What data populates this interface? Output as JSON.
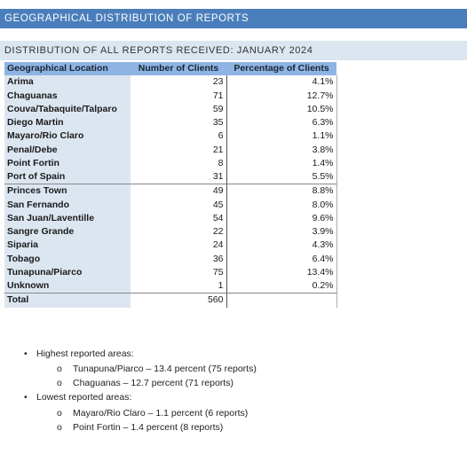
{
  "banner_title": "GEOGRAPHICAL DISTRIBUTION OF REPORTS",
  "subtitle": "DISTRIBUTION OF ALL REPORTS RECEIVED: JANUARY 2024",
  "table": {
    "headers": [
      "Geographical Location",
      "Number of Clients",
      "Percentage of Clients"
    ],
    "rows": [
      {
        "location": "Arima",
        "clients": "23",
        "percent": "4.1%"
      },
      {
        "location": "Chaguanas",
        "clients": "71",
        "percent": "12.7%"
      },
      {
        "location": "Couva/Tabaquite/Talparo",
        "clients": "59",
        "percent": "10.5%"
      },
      {
        "location": "Diego Martin",
        "clients": "35",
        "percent": "6.3%"
      },
      {
        "location": "Mayaro/Rio Claro",
        "clients": "6",
        "percent": "1.1%"
      },
      {
        "location": "Penal/Debe",
        "clients": "21",
        "percent": "3.8%"
      },
      {
        "location": "Point Fortin",
        "clients": "8",
        "percent": "1.4%"
      },
      {
        "location": "Port of Spain",
        "clients": "31",
        "percent": "5.5%"
      },
      {
        "location": "Princes Town",
        "clients": "49",
        "percent": "8.8%"
      },
      {
        "location": "San Fernando",
        "clients": "45",
        "percent": "8.0%"
      },
      {
        "location": "San Juan/Laventille",
        "clients": "54",
        "percent": "9.6%"
      },
      {
        "location": "Sangre Grande",
        "clients": "22",
        "percent": "3.9%"
      },
      {
        "location": "Siparia",
        "clients": "24",
        "percent": "4.3%"
      },
      {
        "location": "Tobago",
        "clients": "36",
        "percent": "6.4%"
      },
      {
        "location": "Tunapuna/Piarco",
        "clients": "75",
        "percent": "13.4%"
      },
      {
        "location": "Unknown",
        "clients": "1",
        "percent": "0.2%"
      }
    ],
    "total": {
      "label": "Total",
      "clients": "560",
      "percent": ""
    }
  },
  "notes": {
    "highest_heading": "Highest reported areas:",
    "highest": [
      "Tunapuna/Piarco – 13.4 percent (75 reports)",
      "Chaguanas – 12.7 percent (71 reports)"
    ],
    "lowest_heading": "Lowest reported areas:",
    "lowest": [
      "Mayaro/Rio Claro – 1.1 percent (6 reports)",
      "Point Fortin – 1.4 percent (8 reports)"
    ]
  }
}
